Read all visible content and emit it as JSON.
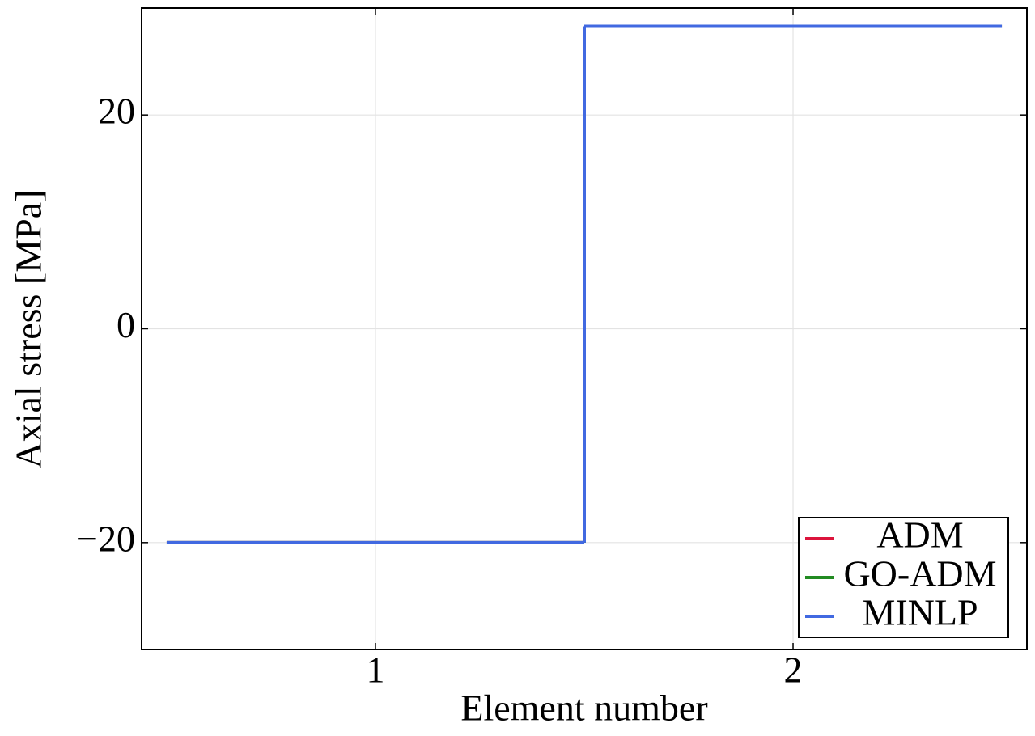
{
  "chart_data": {
    "type": "step",
    "xlabel": "Element number",
    "ylabel": "Axial stress [MPa]",
    "x": [
      1,
      2
    ],
    "series": [
      {
        "name": "ADM",
        "color": "#dc143c",
        "values": [
          -20,
          28.3
        ]
      },
      {
        "name": "GO-ADM",
        "color": "#228b22",
        "values": [
          -20,
          28.3
        ]
      },
      {
        "name": "MINLP",
        "color": "#4169e1",
        "values": [
          -20,
          28.3
        ]
      }
    ],
    "xlim": [
      0.44,
      2.56
    ],
    "ylim": [
      -30,
      30
    ],
    "xticks": [
      1,
      2
    ],
    "yticks": [
      {
        "value": -20,
        "label": "−20"
      },
      0,
      20
    ],
    "grid": true,
    "legend": "lower right"
  }
}
